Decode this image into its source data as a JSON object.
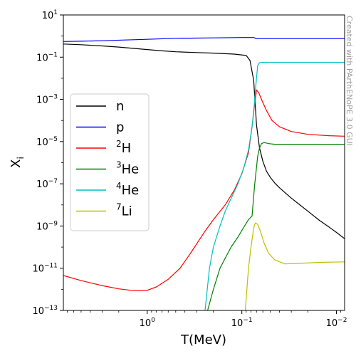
{
  "chart_data": {
    "type": "line",
    "xlabel": "T(MeV)",
    "ylabel": "X",
    "ylabel_sub": "i",
    "xscale": "log",
    "yscale": "log",
    "x_reversed": true,
    "xlim": [
      7.7,
      0.0082
    ],
    "ylim": [
      1e-13,
      10
    ],
    "grid": false,
    "legend_position": "center-left",
    "watermark": "Created with PArthENoPE 3.0 GUI",
    "x_ticks": [
      {
        "value": 1,
        "base": "10",
        "exp": "0"
      },
      {
        "value": 0.1,
        "base": "10",
        "exp": "−1"
      },
      {
        "value": 0.01,
        "base": "10",
        "exp": "−2"
      }
    ],
    "y_ticks": [
      {
        "value": 10,
        "base": "10",
        "exp": "1"
      },
      {
        "value": 0.1,
        "base": "10",
        "exp": "−1"
      },
      {
        "value": 0.001,
        "base": "10",
        "exp": "−3"
      },
      {
        "value": 1e-05,
        "base": "10",
        "exp": "−5"
      },
      {
        "value": 1e-07,
        "base": "10",
        "exp": "−7"
      },
      {
        "value": 1e-09,
        "base": "10",
        "exp": "−9"
      },
      {
        "value": 1e-11,
        "base": "10",
        "exp": "−11"
      },
      {
        "value": 1e-13,
        "base": "10",
        "exp": "−13"
      }
    ],
    "series": [
      {
        "name": "n",
        "sup": "",
        "color": "#000000",
        "x": [
          7.7,
          5,
          3,
          2,
          1,
          0.7,
          0.5,
          0.3,
          0.2,
          0.12,
          0.09,
          0.082,
          0.075,
          0.07,
          0.065,
          0.06,
          0.055,
          0.05,
          0.045,
          0.04,
          0.035,
          0.03,
          0.025,
          0.02,
          0.015,
          0.012,
          0.01,
          0.0082
        ],
        "y": [
          0.42,
          0.39,
          0.34,
          0.3,
          0.23,
          0.2,
          0.18,
          0.165,
          0.155,
          0.14,
          0.12,
          0.07,
          0.008,
          6e-05,
          5e-06,
          1.2e-06,
          4e-07,
          2e-07,
          1.1e-07,
          6.5e-08,
          3.8e-08,
          2.1e-08,
          1.1e-08,
          5e-09,
          1.8e-09,
          9e-10,
          5e-10,
          2.5e-10
        ]
      },
      {
        "name": "p",
        "sup": "",
        "color": "#0000ff",
        "x": [
          7.7,
          5,
          3,
          1,
          0.5,
          0.3,
          0.2,
          0.1,
          0.075,
          0.07,
          0.05,
          0.02,
          0.0082
        ],
        "y": [
          0.55,
          0.57,
          0.6,
          0.7,
          0.78,
          0.8,
          0.82,
          0.85,
          0.85,
          0.75,
          0.75,
          0.75,
          0.75
        ]
      },
      {
        "name": "H",
        "sup": "2",
        "color": "#ff0000",
        "x": [
          7.7,
          5,
          3,
          2,
          1.5,
          1.2,
          1,
          0.8,
          0.6,
          0.45,
          0.35,
          0.25,
          0.2,
          0.15,
          0.12,
          0.1,
          0.085,
          0.078,
          0.074,
          0.07,
          0.066,
          0.062,
          0.055,
          0.048,
          0.04,
          0.03,
          0.02,
          0.012,
          0.0082
        ],
        "y": [
          4.5e-12,
          2.6e-12,
          1.5e-12,
          1.05e-12,
          9e-13,
          8.5e-13,
          9e-13,
          1.3e-12,
          3e-12,
          1e-11,
          5e-11,
          5e-10,
          2e-09,
          1e-08,
          5e-08,
          3e-07,
          3e-06,
          5e-05,
          0.0004,
          0.0028,
          0.002,
          0.001,
          0.0003,
          0.0001,
          5e-05,
          3e-05,
          2.2e-05,
          1.9e-05,
          1.8e-05
        ]
      },
      {
        "name": "He",
        "sup": "3",
        "color": "#008000",
        "x": [
          0.23,
          0.2,
          0.17,
          0.15,
          0.13,
          0.11,
          0.095,
          0.085,
          0.078,
          0.073,
          0.068,
          0.065,
          0.062,
          0.058,
          0.052,
          0.045,
          0.035,
          0.02,
          0.0082
        ],
        "y": [
          1e-13,
          1e-12,
          1e-11,
          3e-11,
          1e-10,
          3e-10,
          9e-10,
          2e-09,
          3e-09,
          1e-07,
          2e-06,
          5e-06,
          8e-06,
          9e-06,
          8e-06,
          7.5e-06,
          7.5e-06,
          7.5e-06,
          7.5e-06
        ]
      },
      {
        "name": "He",
        "sup": "4",
        "color": "#00bfbf",
        "x": [
          0.245,
          0.22,
          0.2,
          0.17,
          0.15,
          0.13,
          0.11,
          0.095,
          0.085,
          0.078,
          0.074,
          0.071,
          0.068,
          0.065,
          0.06,
          0.04,
          0.02,
          0.0082
        ],
        "y": [
          1e-13,
          1e-11,
          1e-10,
          1e-09,
          5e-09,
          2e-08,
          1e-07,
          6e-07,
          4e-06,
          5e-05,
          0.0005,
          0.005,
          0.04,
          0.055,
          0.057,
          0.057,
          0.057,
          0.057
        ]
      },
      {
        "name": "Li",
        "sup": "7",
        "color": "#bfbf00",
        "x": [
          0.092,
          0.085,
          0.08,
          0.075,
          0.072,
          0.068,
          0.064,
          0.058,
          0.052,
          0.045,
          0.035,
          0.025,
          0.015,
          0.0082
        ],
        "y": [
          1e-13,
          1e-11,
          1e-10,
          8e-10,
          1.4e-09,
          1.2e-09,
          6e-10,
          1.5e-10,
          5e-11,
          2.5e-11,
          1.6e-11,
          1.7e-11,
          1.9e-11,
          2e-11
        ]
      }
    ]
  }
}
